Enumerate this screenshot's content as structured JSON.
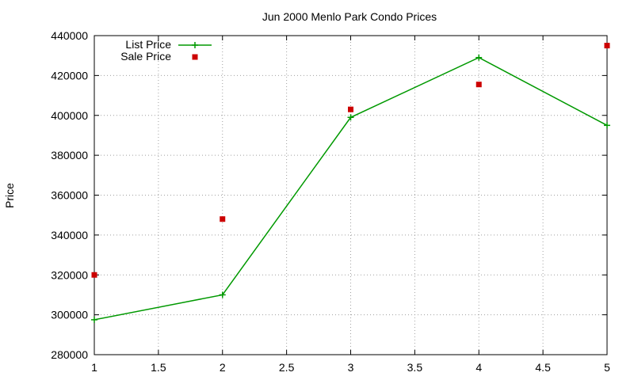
{
  "chart_data": {
    "type": "line",
    "title": "Jun 2000 Menlo Park Condo Prices",
    "xlabel": "",
    "ylabel": "Price",
    "xlim": [
      1,
      5
    ],
    "ylim": [
      280000,
      440000
    ],
    "x_ticks": [
      "1",
      "1.5",
      "2",
      "2.5",
      "3",
      "3.5",
      "4",
      "4.5",
      "5"
    ],
    "y_ticks": [
      "280000",
      "300000",
      "320000",
      "340000",
      "360000",
      "380000",
      "400000",
      "420000",
      "440000"
    ],
    "grid": true,
    "legend_position": "top-left",
    "series": [
      {
        "name": "List Price",
        "style": "linespoints",
        "color": "#009900",
        "x": [
          1,
          2,
          3,
          4,
          5
        ],
        "y": [
          297500,
          310000,
          399000,
          429000,
          395000
        ]
      },
      {
        "name": "Sale Price",
        "style": "points",
        "color": "#cc0000",
        "x": [
          1,
          2,
          3,
          4,
          5
        ],
        "y": [
          320000,
          348000,
          403000,
          415500,
          435000
        ]
      }
    ]
  }
}
